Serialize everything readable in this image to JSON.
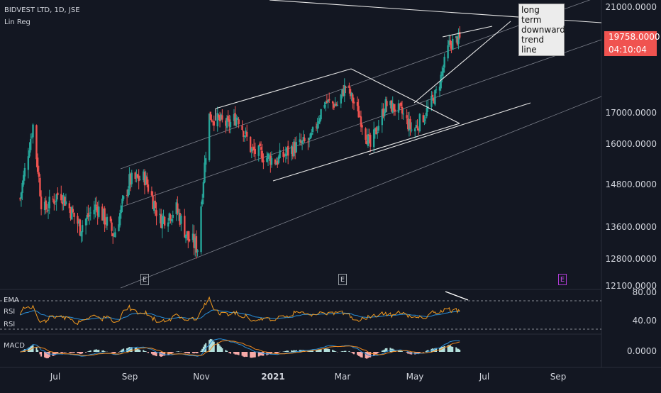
{
  "header": {
    "symbol": "BIDVEST LTD, 1D, JSE",
    "indicator": "Lin Reg"
  },
  "annotation": {
    "line1": "long term",
    "line2": "downward",
    "line3": "trend line"
  },
  "price_tag": {
    "price": "19758.0000",
    "countdown": "04:10:04",
    "color": "#f05350"
  },
  "panes": {
    "rsi_labels": [
      "EMA",
      "RSI",
      "RSI"
    ],
    "macd_label": "MACD"
  },
  "colors": {
    "background": "#131722",
    "up": "#26a69a",
    "down": "#ef5350",
    "rsi": "#f29a1f",
    "ema": "#2a8fd8",
    "macd": "#2a8fd8",
    "signal": "#f28a1f",
    "event_marker": "#9c27b0"
  },
  "events": [
    {
      "date": "Sep 2020",
      "label": "E",
      "future": false
    },
    {
      "date": "Mar 2021",
      "label": "E",
      "future": false
    },
    {
      "date": "Aug 2021",
      "label": "E",
      "future": true
    }
  ],
  "chart_data": {
    "type": "candlestick",
    "price_axis_ticks": [
      "21000.0000",
      "17000.0000",
      "16000.0000",
      "14800.0000",
      "13600.0000",
      "12800.0000",
      "12100.0000"
    ],
    "rsi_axis_ticks": [
      "80.00",
      "40.00"
    ],
    "macd_axis_ticks": [
      "0.0000"
    ],
    "x_tick_labels": [
      "Jul",
      "Sep",
      "Nov",
      "2021",
      "Mar",
      "May",
      "Jul",
      "Sep"
    ],
    "x_ticks": [
      "2020-07-01",
      "2020-09-01",
      "2020-11-01",
      "2021-01-01",
      "2021-03-01",
      "2021-05-01",
      "2021-07-01",
      "2021-09-01"
    ],
    "ylim": [
      12000,
      21500
    ],
    "rsi_levels": [
      70,
      30
    ],
    "last_price": 19758,
    "close_path": [
      {
        "date": "2020-06-01",
        "close": 14400
      },
      {
        "date": "2020-06-12",
        "close": 16600
      },
      {
        "date": "2020-06-20",
        "close": 14000
      },
      {
        "date": "2020-07-05",
        "close": 14600
      },
      {
        "date": "2020-07-22",
        "close": 13600
      },
      {
        "date": "2020-08-05",
        "close": 14200
      },
      {
        "date": "2020-08-20",
        "close": 13400
      },
      {
        "date": "2020-09-02",
        "close": 14900
      },
      {
        "date": "2020-09-15",
        "close": 15000
      },
      {
        "date": "2020-09-28",
        "close": 13800
      },
      {
        "date": "2020-10-12",
        "close": 14100
      },
      {
        "date": "2020-10-22",
        "close": 13300
      },
      {
        "date": "2020-10-30",
        "close": 13100
      },
      {
        "date": "2020-11-09",
        "close": 16900
      },
      {
        "date": "2020-11-25",
        "close": 16600
      },
      {
        "date": "2020-12-03",
        "close": 16900
      },
      {
        "date": "2020-12-15",
        "close": 15800
      },
      {
        "date": "2021-01-05",
        "close": 15500
      },
      {
        "date": "2021-01-20",
        "close": 15900
      },
      {
        "date": "2021-02-03",
        "close": 16100
      },
      {
        "date": "2021-02-15",
        "close": 17400
      },
      {
        "date": "2021-02-26",
        "close": 17300
      },
      {
        "date": "2021-03-05",
        "close": 18000
      },
      {
        "date": "2021-03-18",
        "close": 16800
      },
      {
        "date": "2021-03-26",
        "close": 15900
      },
      {
        "date": "2021-04-08",
        "close": 17300
      },
      {
        "date": "2021-04-20",
        "close": 17100
      },
      {
        "date": "2021-05-01",
        "close": 16400
      },
      {
        "date": "2021-05-12",
        "close": 17000
      },
      {
        "date": "2021-05-22",
        "close": 17800
      },
      {
        "date": "2021-06-01",
        "close": 19500
      },
      {
        "date": "2021-06-10",
        "close": 19758
      }
    ]
  }
}
